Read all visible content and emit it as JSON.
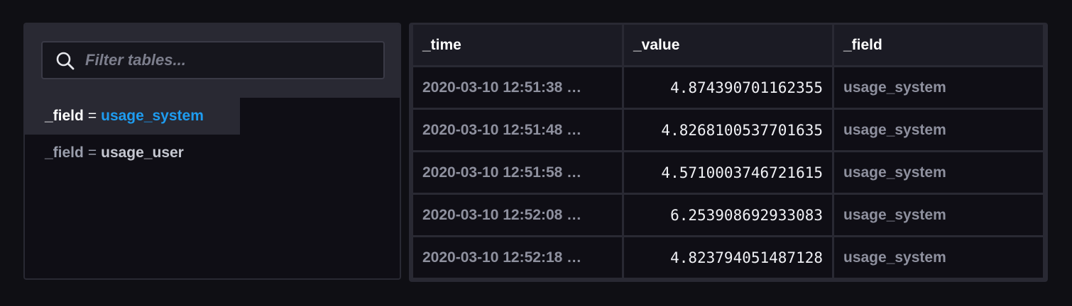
{
  "filter": {
    "placeholder": "Filter tables...",
    "icon": "search-icon"
  },
  "tables": [
    {
      "key": "_field",
      "eq": "=",
      "value": "usage_system",
      "active": true
    },
    {
      "key": "_field",
      "eq": "=",
      "value": "usage_user",
      "active": false
    }
  ],
  "data_table": {
    "headers": [
      "_time",
      "_value",
      "_field"
    ],
    "rows": [
      {
        "time": "2020-03-10 12:51:38 …",
        "value": "4.874390701162355",
        "field": "usage_system"
      },
      {
        "time": "2020-03-10 12:51:48 …",
        "value": "4.8268100537701635",
        "field": "usage_system"
      },
      {
        "time": "2020-03-10 12:51:58 …",
        "value": "4.5710003746721615",
        "field": "usage_system"
      },
      {
        "time": "2020-03-10 12:52:08 …",
        "value": "6.253908692933083",
        "field": "usage_system"
      },
      {
        "time": "2020-03-10 12:52:18 …",
        "value": "4.823794051487128",
        "field": "usage_system"
      }
    ]
  },
  "colors": {
    "background": "#0f0f14",
    "panel": "#292933",
    "accent": "#1e9cf0"
  }
}
